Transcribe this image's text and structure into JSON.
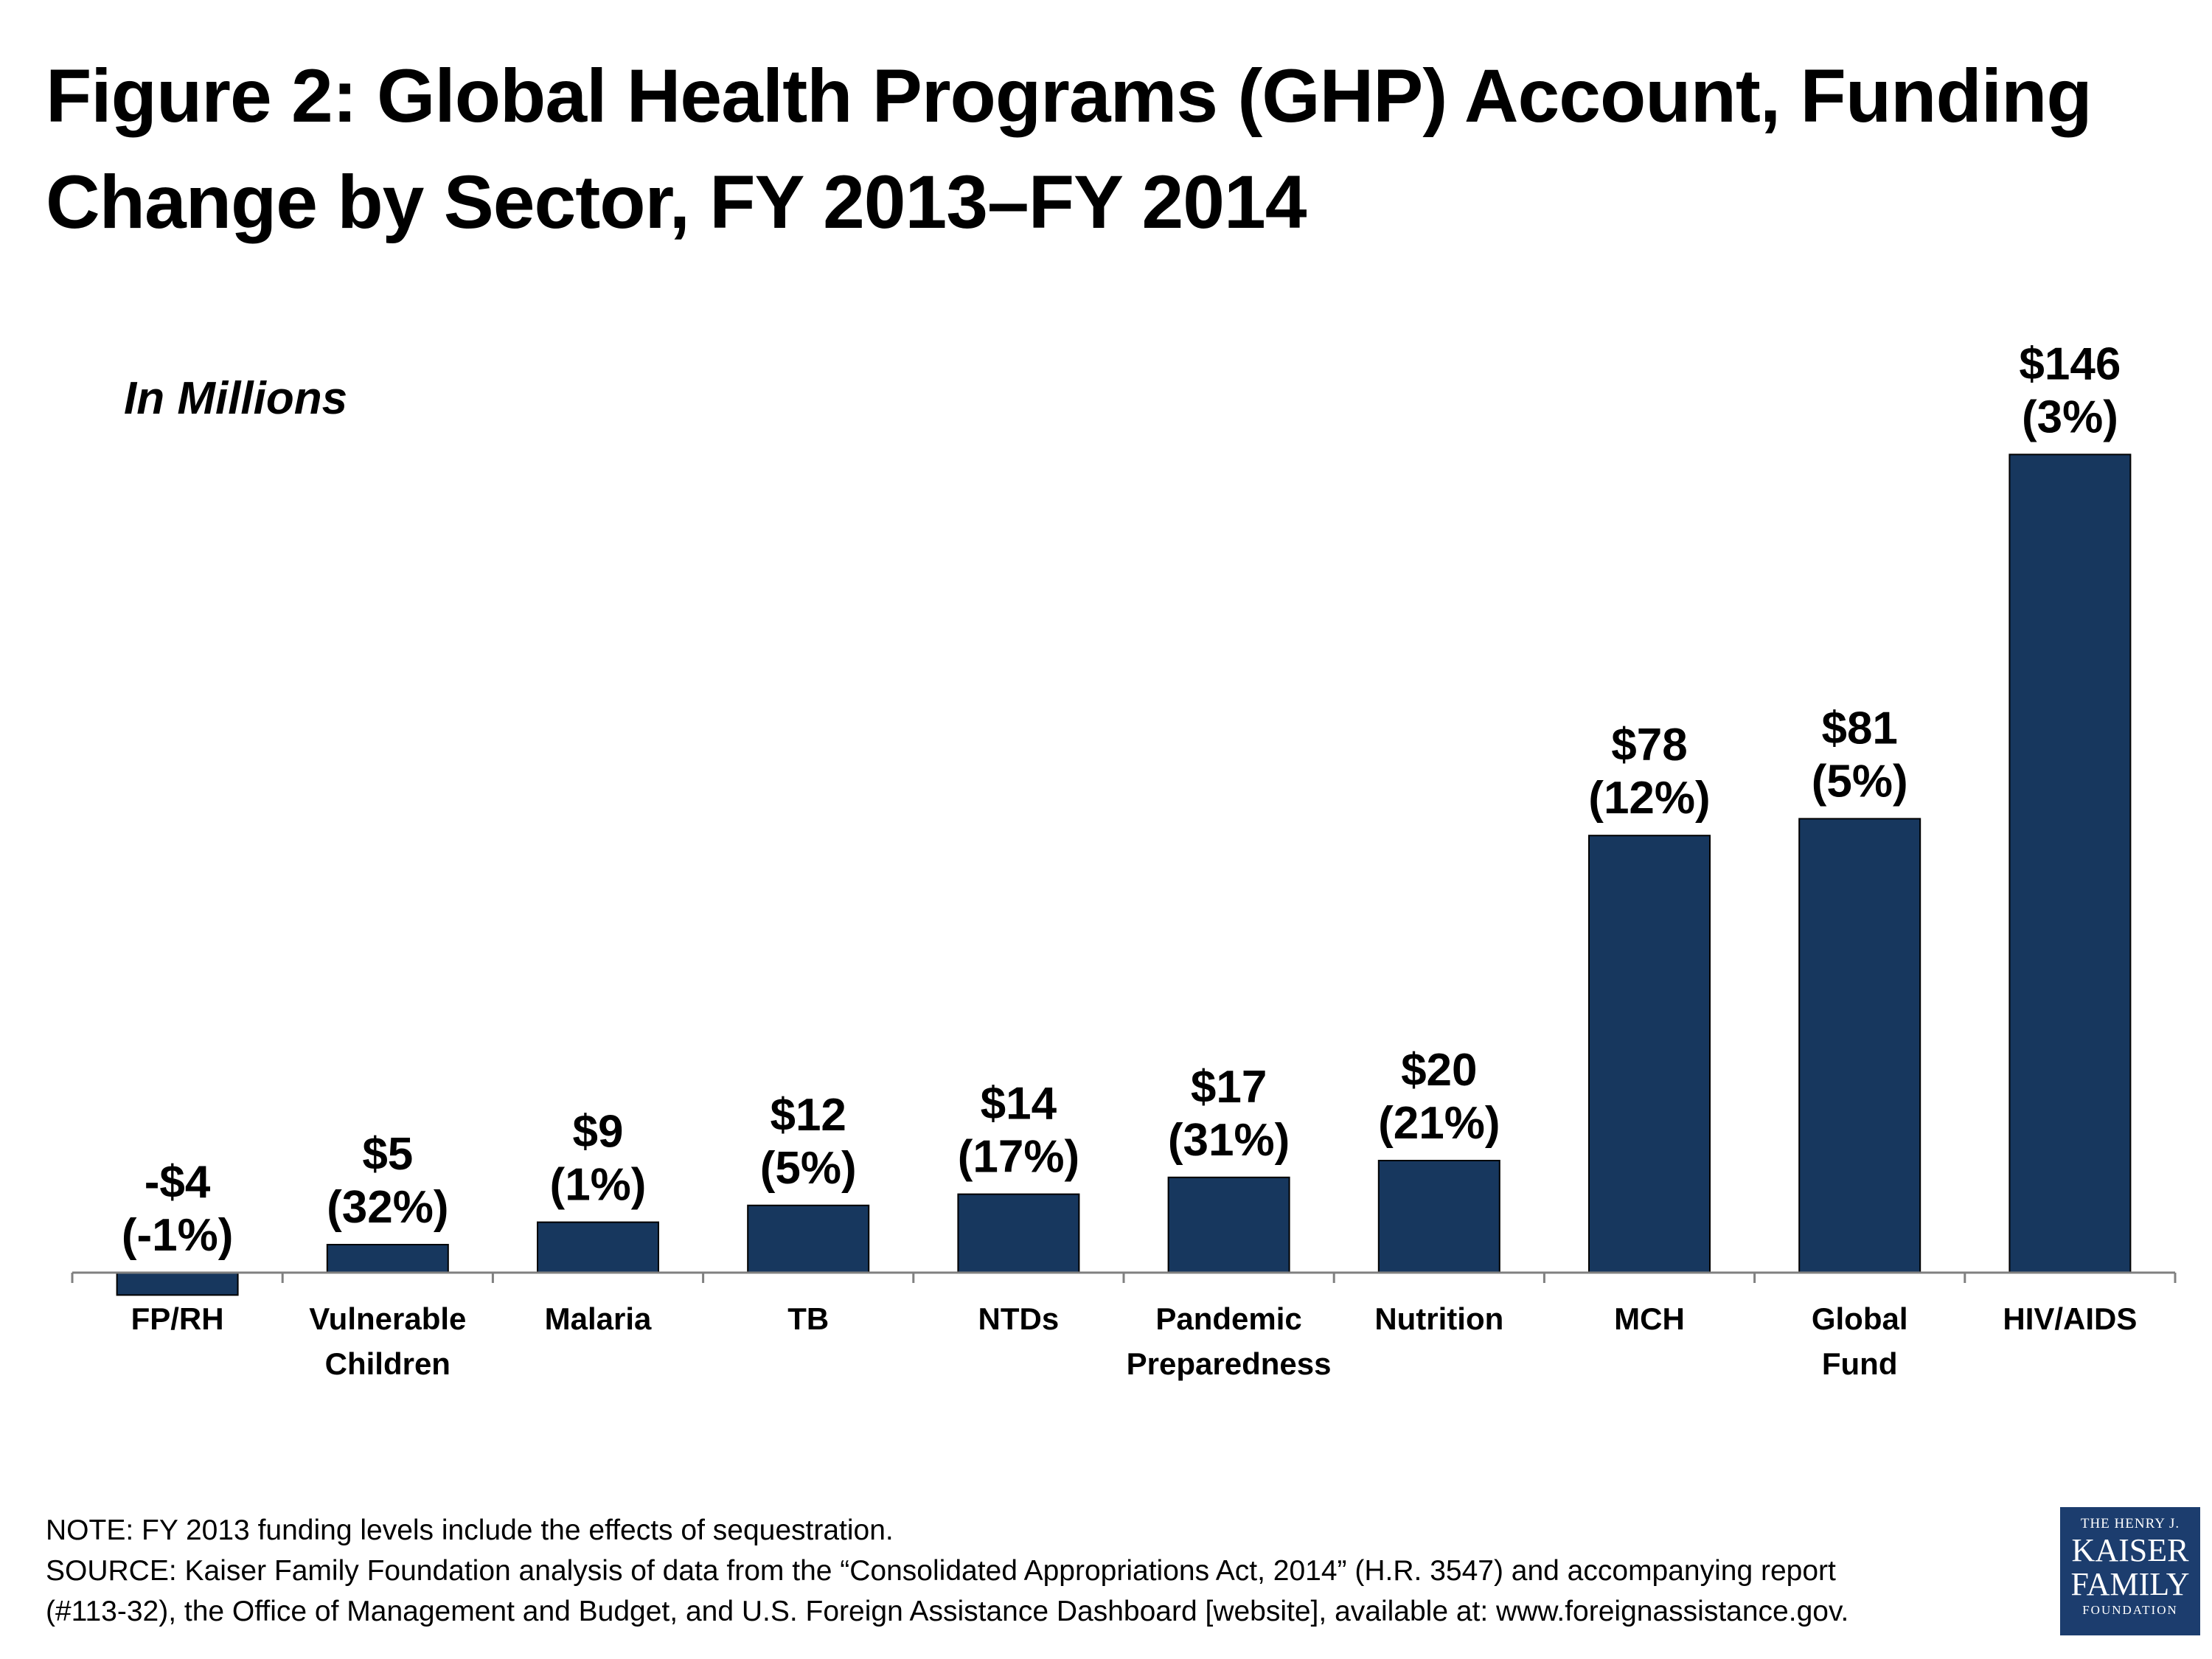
{
  "title": "Figure 2: Global Health Programs (GHP) Account, Funding Change by Sector, FY 2013–FY 2014",
  "chart_data": {
    "type": "bar",
    "title": "",
    "subtitle": "In Millions",
    "categories": [
      [
        "FP/RH"
      ],
      [
        "Vulnerable",
        "Children"
      ],
      [
        "Malaria"
      ],
      [
        "TB"
      ],
      [
        "NTDs"
      ],
      [
        "Pandemic",
        "Preparedness"
      ],
      [
        "Nutrition"
      ],
      [
        "MCH"
      ],
      [
        "Global",
        "Fund"
      ],
      [
        "HIV/AIDS"
      ]
    ],
    "values": [
      -4,
      5,
      9,
      12,
      14,
      17,
      20,
      78,
      81,
      146
    ],
    "value_labels": [
      "-$4",
      "$5",
      "$9",
      "$12",
      "$14",
      "$17",
      "$20",
      "$78",
      "$81",
      "$146"
    ],
    "percent_labels": [
      "(-1%)",
      "(32%)",
      "(1%)",
      "(5%)",
      "(17%)",
      "(31%)",
      "(21%)",
      "(12%)",
      "(5%)",
      "(3%)"
    ],
    "bar_color": "#17375e",
    "grid": false,
    "legend": "none"
  },
  "footnotes": {
    "note": "NOTE: FY 2013 funding levels include the effects of sequestration.",
    "source_line1": "SOURCE: Kaiser Family Foundation analysis of data from the “Consolidated Appropriations Act, 2014” (H.R. 3547) and accompanying report",
    "source_line2": "(#113-32), the Office of Management and Budget, and U.S. Foreign Assistance Dashboard [website], available at: www.foreignassistance.gov."
  },
  "logo": {
    "line1": "THE HENRY J.",
    "line2": "KAISER",
    "line3": "FAMILY",
    "line4": "FOUNDATION"
  }
}
